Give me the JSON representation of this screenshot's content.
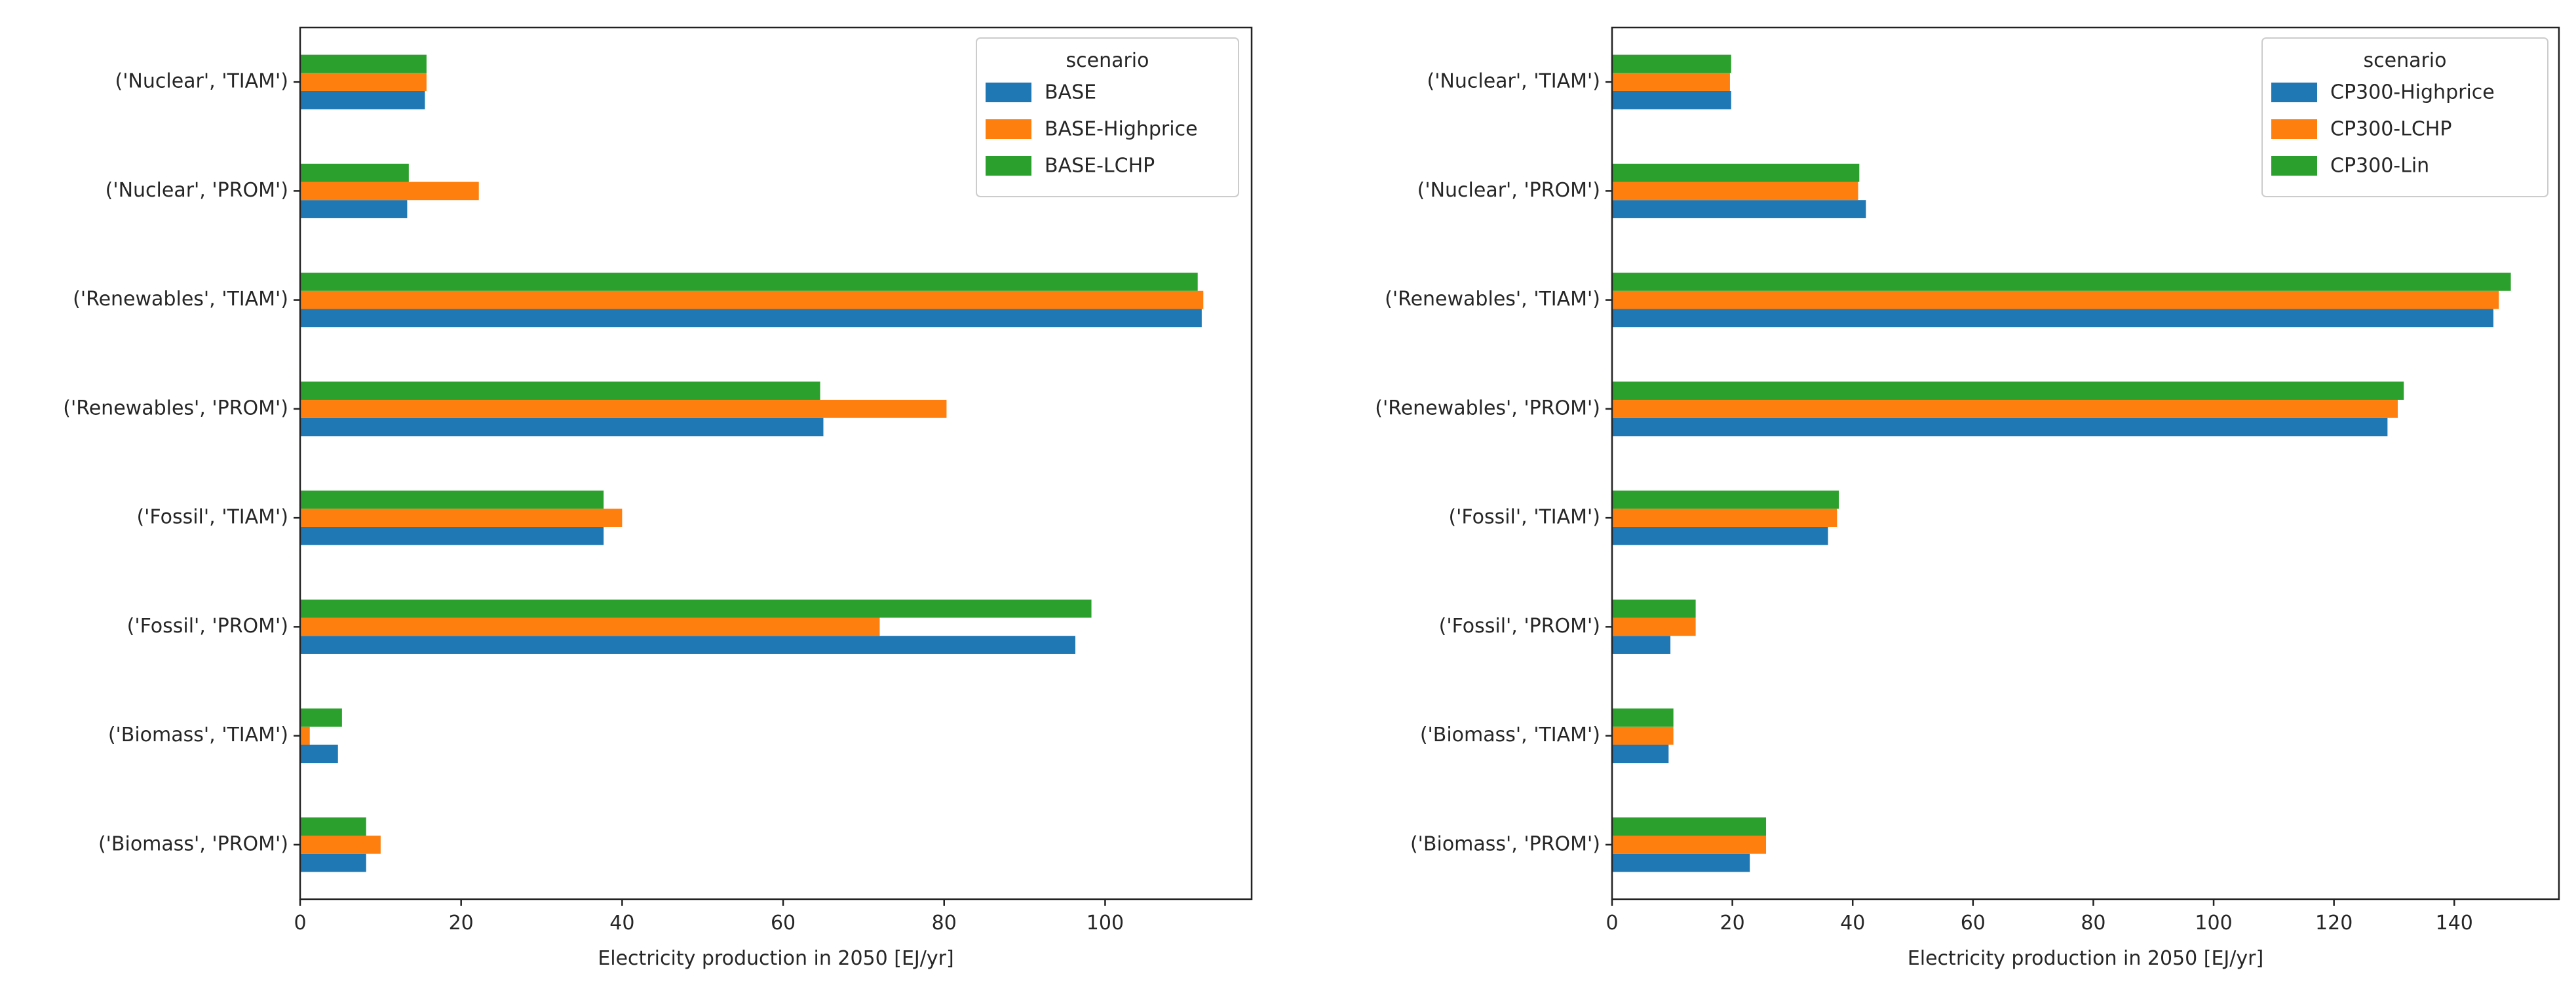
{
  "chart_data": [
    {
      "type": "bar",
      "orientation": "horizontal",
      "categories": [
        "('Nuclear', 'TIAM')",
        "('Nuclear', 'PROM')",
        "('Renewables', 'TIAM')",
        "('Renewables', 'PROM')",
        "('Fossil', 'TIAM')",
        "('Fossil', 'PROM')",
        "('Biomass', 'TIAM')",
        "('Biomass', 'PROM')"
      ],
      "series": [
        {
          "name": "BASE",
          "color": "#1f77b4",
          "values": [
            15.5,
            13.3,
            112.0,
            65.0,
            37.7,
            96.3,
            4.7,
            8.2
          ]
        },
        {
          "name": "BASE-Highprice",
          "color": "#ff7f0e",
          "values": [
            15.7,
            22.2,
            112.2,
            80.3,
            40.0,
            72.0,
            1.2,
            10.0
          ]
        },
        {
          "name": "BASE-LCHP",
          "color": "#2ca02c",
          "values": [
            15.7,
            13.5,
            111.5,
            64.6,
            37.7,
            98.3,
            5.2,
            8.2
          ]
        }
      ],
      "title": "",
      "xlabel": "Electricity production in 2050 [EJ/yr]",
      "ylabel": "",
      "xlim": [
        0,
        118.2
      ],
      "xticks": [
        0,
        20,
        40,
        60,
        80,
        100
      ],
      "legend_title": "scenario",
      "legend_position": "top-right",
      "grid": false
    },
    {
      "type": "bar",
      "orientation": "horizontal",
      "categories": [
        "('Nuclear', 'TIAM')",
        "('Nuclear', 'PROM')",
        "('Renewables', 'TIAM')",
        "('Renewables', 'PROM')",
        "('Fossil', 'TIAM')",
        "('Fossil', 'PROM')",
        "('Biomass', 'TIAM')",
        "('Biomass', 'PROM')"
      ],
      "series": [
        {
          "name": "CP300-Highprice",
          "color": "#1f77b4",
          "values": [
            19.8,
            42.2,
            146.5,
            128.9,
            35.9,
            9.7,
            9.4,
            22.9
          ]
        },
        {
          "name": "CP300-LCHP",
          "color": "#ff7f0e",
          "values": [
            19.6,
            40.9,
            147.4,
            130.6,
            37.4,
            13.9,
            10.2,
            25.6
          ]
        },
        {
          "name": "CP300-Lin",
          "color": "#2ca02c",
          "values": [
            19.8,
            41.1,
            149.4,
            131.6,
            37.7,
            13.9,
            10.2,
            25.6
          ]
        }
      ],
      "title": "",
      "xlabel": "Electricity production in 2050 [EJ/yr]",
      "ylabel": "",
      "xlim": [
        0,
        157.4
      ],
      "xticks": [
        0,
        20,
        40,
        60,
        80,
        100,
        120,
        140
      ],
      "legend_title": "scenario",
      "legend_position": "top-right",
      "grid": false
    }
  ]
}
